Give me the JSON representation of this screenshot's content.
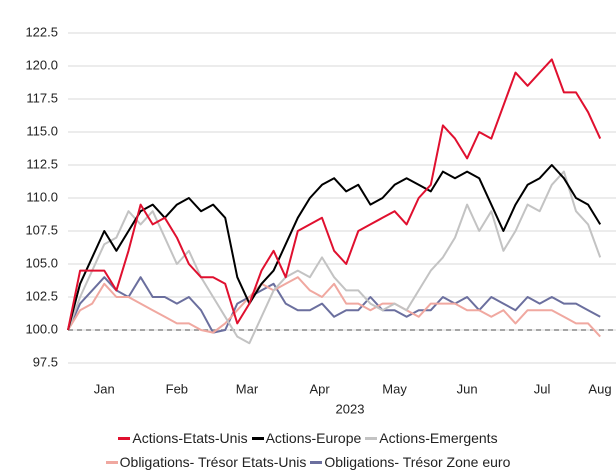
{
  "chart_data": {
    "type": "line",
    "x": [
      0,
      5,
      10,
      15,
      20,
      25,
      30,
      35,
      40,
      45,
      50,
      55,
      60,
      65,
      70,
      75,
      80,
      85,
      90,
      95,
      100,
      105,
      110,
      115,
      120,
      125,
      130,
      135,
      140,
      145,
      150,
      155,
      160,
      165,
      170,
      175,
      180,
      185,
      190,
      195,
      200,
      205,
      210,
      215,
      220
    ],
    "xlim": [
      0,
      222
    ],
    "xticks": [
      {
        "value": 15,
        "label": "Jan"
      },
      {
        "value": 45,
        "label": "Feb"
      },
      {
        "value": 74,
        "label": "Mar"
      },
      {
        "value": 104,
        "label": "Apr"
      },
      {
        "value": 135,
        "label": "May"
      },
      {
        "value": 165,
        "label": "Jun"
      },
      {
        "value": 196,
        "label": "Jul"
      },
      {
        "value": 227,
        "label": "Aug"
      }
    ],
    "xlabel": "2023",
    "ylim": [
      97.5,
      122.5
    ],
    "yticks": [
      97.5,
      {
        "value": 100,
        "label": "100.0"
      },
      102.5,
      {
        "value": 105,
        "label": "105.0"
      },
      107.5,
      {
        "value": 110,
        "label": "110.0"
      },
      112.5,
      {
        "value": 115,
        "label": "115.0"
      },
      117.5,
      {
        "value": 120,
        "label": "120.0"
      },
      122.5
    ],
    "grid": true,
    "hline": 100,
    "series": [
      {
        "name": "Actions-Etats-Unis",
        "color": "#e0102f",
        "values": [
          100,
          104.5,
          104.5,
          104.5,
          103,
          106,
          109.5,
          108,
          108.5,
          107,
          105,
          104,
          104,
          103.5,
          100.5,
          102,
          104.5,
          106,
          104,
          107.5,
          108,
          108.5,
          106,
          105,
          107.5,
          108,
          108.5,
          109,
          108,
          110,
          111,
          115.5,
          114.5,
          113,
          115,
          114.5,
          117,
          119.5,
          118.5,
          119.5,
          120.5,
          118,
          118,
          116.5,
          114.5
        ]
      },
      {
        "name": "Actions-Europe",
        "color": "#000000",
        "values": [
          100,
          103.5,
          105.5,
          107.5,
          106,
          107.5,
          109,
          109.5,
          108.5,
          109.5,
          110,
          109,
          109.5,
          108.5,
          104,
          102,
          103.5,
          104.5,
          106.5,
          108.5,
          110,
          111,
          111.5,
          110.5,
          111,
          109.5,
          110,
          111,
          111.5,
          111,
          110.5,
          112,
          111.5,
          112,
          111.5,
          109.5,
          107.5,
          109.5,
          111,
          111.5,
          112.5,
          111.5,
          110,
          109.5,
          108
        ]
      },
      {
        "name": "Actions-Emergents",
        "color": "#c3c3c3",
        "values": [
          100,
          102.5,
          104.5,
          106.5,
          107,
          109,
          108,
          109,
          107,
          105,
          106,
          104,
          102.5,
          101,
          99.5,
          99,
          101,
          103,
          104,
          104.5,
          104,
          105.5,
          104,
          103,
          103,
          102,
          101.5,
          102,
          101.5,
          103,
          104.5,
          105.5,
          107,
          109.5,
          107.5,
          109,
          106,
          107.5,
          109.5,
          109,
          111,
          112,
          109,
          108,
          105.5
        ]
      },
      {
        "name": "Obligations- Trésor Etats-Unis",
        "color": "#f0a8a0",
        "values": [
          100,
          101.5,
          102,
          103.5,
          102.5,
          102.5,
          102,
          101.5,
          101,
          100.5,
          100.5,
          100,
          99.8,
          100.5,
          101.5,
          102.5,
          103.5,
          103,
          103.5,
          104,
          103,
          102.5,
          103.5,
          102,
          102,
          101.5,
          102,
          102,
          101.5,
          101,
          102,
          102,
          102,
          101.5,
          101.5,
          101,
          101.5,
          100.5,
          101.5,
          101.5,
          101.5,
          101,
          100.5,
          100.5,
          99.5
        ]
      },
      {
        "name": "Obligations- Trésor Zone euro",
        "color": "#6b6f9e",
        "values": [
          100,
          102,
          103,
          104,
          103,
          102.5,
          104,
          102.5,
          102.5,
          102,
          102.5,
          101.5,
          99.8,
          100,
          102,
          102.5,
          103,
          103.5,
          102,
          101.5,
          101.5,
          102,
          101,
          101.5,
          101.5,
          102.5,
          101.5,
          101.5,
          101,
          101.5,
          101.5,
          102.5,
          102,
          102.5,
          101.5,
          102.5,
          102,
          101.5,
          102.5,
          102,
          102.5,
          102,
          102,
          101.5,
          101
        ]
      }
    ]
  }
}
